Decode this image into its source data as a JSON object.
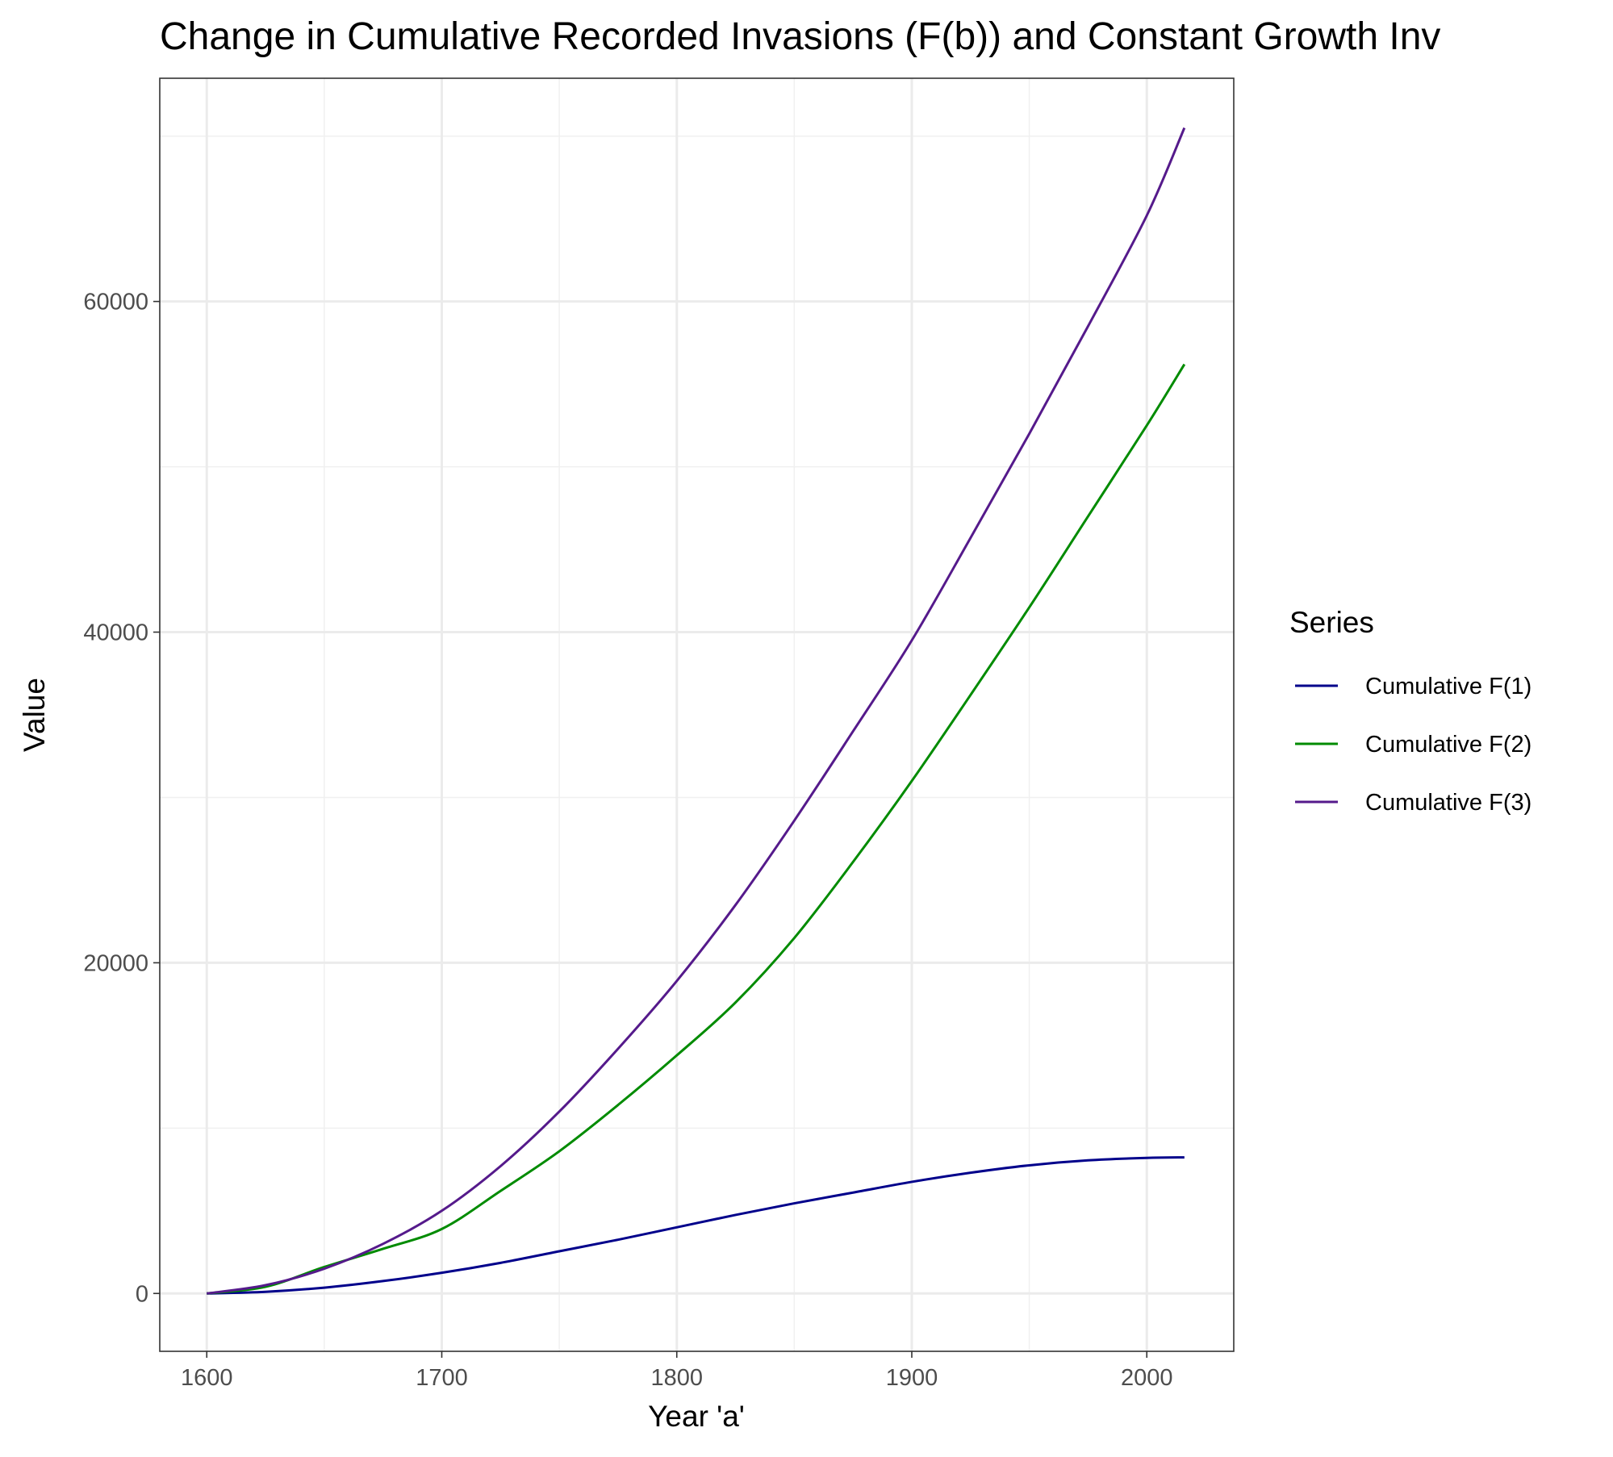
{
  "chart_data": {
    "type": "line",
    "title": "Change in Cumulative Recorded Invasions (F(b)) and Constant Growth Inv",
    "xlabel": "Year 'a'",
    "ylabel": "Value",
    "xlim": [
      1580,
      2037
    ],
    "ylim": [
      -3500,
      73500
    ],
    "xticks": [
      1600,
      1700,
      1800,
      1900,
      2000
    ],
    "xtick_labels": [
      "1600",
      "1700",
      "1800",
      "1900",
      "2000"
    ],
    "x_minor": [
      1650,
      1750,
      1850,
      1950
    ],
    "yticks": [
      0,
      20000,
      40000,
      60000
    ],
    "ytick_labels": [
      "0",
      "20000",
      "40000",
      "60000"
    ],
    "y_minor": [
      10000,
      30000,
      50000,
      70000
    ],
    "grid": true,
    "legend_title": "Series",
    "legend_position": "right",
    "x": [
      1600,
      1625,
      1650,
      1675,
      1700,
      1725,
      1750,
      1775,
      1800,
      1825,
      1850,
      1875,
      1900,
      1925,
      1950,
      1975,
      2000,
      2016
    ],
    "series": [
      {
        "name": "Cumulative F(1)",
        "color": "#00008B",
        "values": [
          0,
          100,
          350,
          750,
          1250,
          1850,
          2550,
          3250,
          4000,
          4750,
          5450,
          6100,
          6750,
          7300,
          7750,
          8050,
          8200,
          8230
        ]
      },
      {
        "name": "Cumulative F(2)",
        "color": "#008B00",
        "values": [
          0,
          400,
          1600,
          2700,
          3900,
          6200,
          8600,
          11400,
          14400,
          17600,
          21500,
          26100,
          31000,
          36200,
          41500,
          47000,
          52500,
          56200
        ]
      },
      {
        "name": "Cumulative F(3)",
        "color": "#551A8B",
        "values": [
          0,
          500,
          1500,
          3000,
          5000,
          7700,
          11000,
          14800,
          18900,
          23500,
          28600,
          34000,
          39500,
          45700,
          52000,
          58500,
          65200,
          70500
        ]
      }
    ]
  }
}
